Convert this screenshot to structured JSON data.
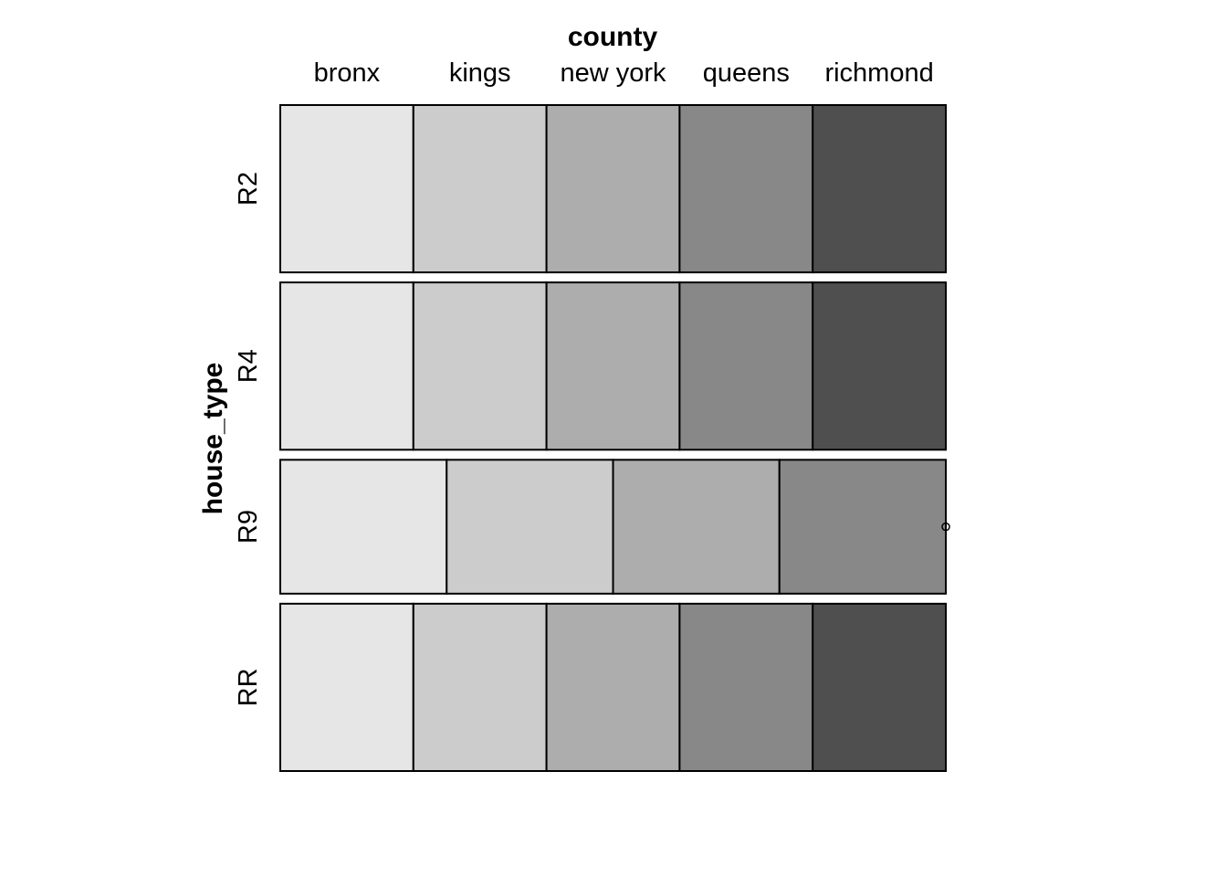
{
  "chart_data": {
    "type": "mosaic",
    "x_variable": "county",
    "y_variable": "house_type",
    "x_categories": [
      "bronx",
      "kings",
      "new york",
      "queens",
      "richmond"
    ],
    "y_categories": [
      "R2",
      "R4",
      "R9",
      "RR"
    ],
    "rows": [
      {
        "name": "R2",
        "proportion": 0.25,
        "cells": [
          {
            "category": "bronx",
            "share": 0.2
          },
          {
            "category": "kings",
            "share": 0.2
          },
          {
            "category": "new york",
            "share": 0.2
          },
          {
            "category": "queens",
            "share": 0.2
          },
          {
            "category": "richmond",
            "share": 0.2
          }
        ]
      },
      {
        "name": "R4",
        "proportion": 0.25,
        "cells": [
          {
            "category": "bronx",
            "share": 0.2
          },
          {
            "category": "kings",
            "share": 0.2
          },
          {
            "category": "new york",
            "share": 0.2
          },
          {
            "category": "queens",
            "share": 0.2
          },
          {
            "category": "richmond",
            "share": 0.2
          }
        ]
      },
      {
        "name": "R9",
        "proportion": 0.2,
        "cells": [
          {
            "category": "bronx",
            "share": 0.25
          },
          {
            "category": "kings",
            "share": 0.25
          },
          {
            "category": "new york",
            "share": 0.25
          },
          {
            "category": "queens",
            "share": 0.25
          },
          {
            "category": "richmond",
            "share": 0
          }
        ]
      },
      {
        "name": "RR",
        "proportion": 0.25,
        "cells": [
          {
            "category": "bronx",
            "share": 0.2
          },
          {
            "category": "kings",
            "share": 0.2
          },
          {
            "category": "new york",
            "share": 0.2
          },
          {
            "category": "queens",
            "share": 0.2
          },
          {
            "category": "richmond",
            "share": 0.2
          }
        ]
      }
    ],
    "fill_colors": {
      "bronx": "#e6e6e6",
      "kings": "#cccccc",
      "new york": "#adadad",
      "queens": "#888888",
      "richmond": "#4f4f4f"
    },
    "background": "#ffffff"
  }
}
